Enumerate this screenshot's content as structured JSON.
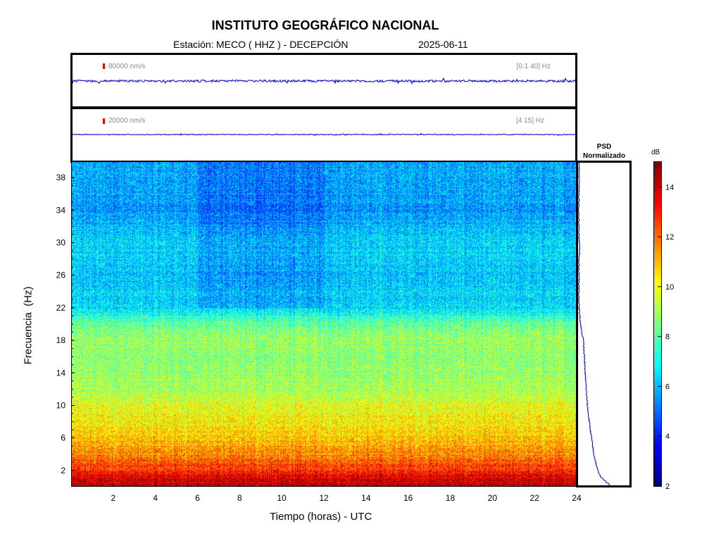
{
  "header": {
    "institution": "INSTITUTO GEOGRÁFICO NACIONAL",
    "station_label": "Estación:",
    "station": "MECO ( HHZ ) - DECEPCIÓN",
    "date": "2025-06-11"
  },
  "colors": {
    "trace": "#0000c8",
    "scale_mark": "#e00000",
    "label_gray": "#8a8a8a"
  },
  "chart_data": [
    {
      "type": "line",
      "name": "seismogram-broadband",
      "scale_label": "80000 nm/s",
      "band_label": "[0.1 40] Hz",
      "description_values": "continuous low-amplitude noise trace over 24 h"
    },
    {
      "type": "line",
      "name": "seismogram-filtered",
      "scale_label": "20000 nm/s",
      "band_label": "[4 15] Hz"
    },
    {
      "type": "heatmap",
      "xlabel": "Tiempo (horas) - UTC",
      "ylabel": "Frecuencia  (Hz)",
      "xlim": [
        0,
        24
      ],
      "ylim": [
        0,
        40
      ],
      "x_ticks": [
        "2",
        "4",
        "6",
        "8",
        "10",
        "12",
        "14",
        "16",
        "18",
        "20",
        "22",
        "24"
      ],
      "y_ticks": [
        "2",
        "6",
        "10",
        "14",
        "18",
        "22",
        "26",
        "30",
        "34",
        "38"
      ],
      "colorbar": {
        "label": "dB",
        "range": [
          2,
          15
        ],
        "ticks": [
          "2",
          "4",
          "6",
          "8",
          "10",
          "12",
          "14"
        ],
        "colormap": "jet"
      },
      "level_profile": {
        "freq_hz": [
          0,
          1,
          2,
          3,
          4,
          6,
          8,
          10,
          12,
          14,
          16,
          18,
          20,
          22,
          26,
          30,
          34,
          38,
          40
        ],
        "db": [
          14.3,
          13.8,
          12.8,
          12.2,
          11.6,
          10.8,
          10.2,
          9.8,
          9.0,
          8.8,
          8.6,
          8.9,
          8.2,
          6.4,
          6.2,
          6.4,
          5.6,
          5.8,
          5.8
        ]
      }
    },
    {
      "type": "line",
      "name": "psd-normalizado",
      "title_line1": "PSD",
      "title_line2": "Normalizado",
      "freq_hz": [
        0,
        0.5,
        1,
        2,
        3,
        4,
        6,
        8,
        10,
        12,
        14,
        16,
        18,
        19,
        20,
        21,
        22,
        24,
        26,
        28,
        29.5,
        31,
        34,
        38,
        40
      ],
      "value": [
        0.85,
        0.72,
        0.6,
        0.5,
        0.45,
        0.4,
        0.34,
        0.28,
        0.23,
        0.2,
        0.17,
        0.15,
        0.13,
        0.08,
        0.05,
        0.03,
        0.01,
        0.0,
        0.01,
        0.0,
        0.03,
        0.0,
        0.0,
        0.01,
        0.01
      ]
    }
  ]
}
